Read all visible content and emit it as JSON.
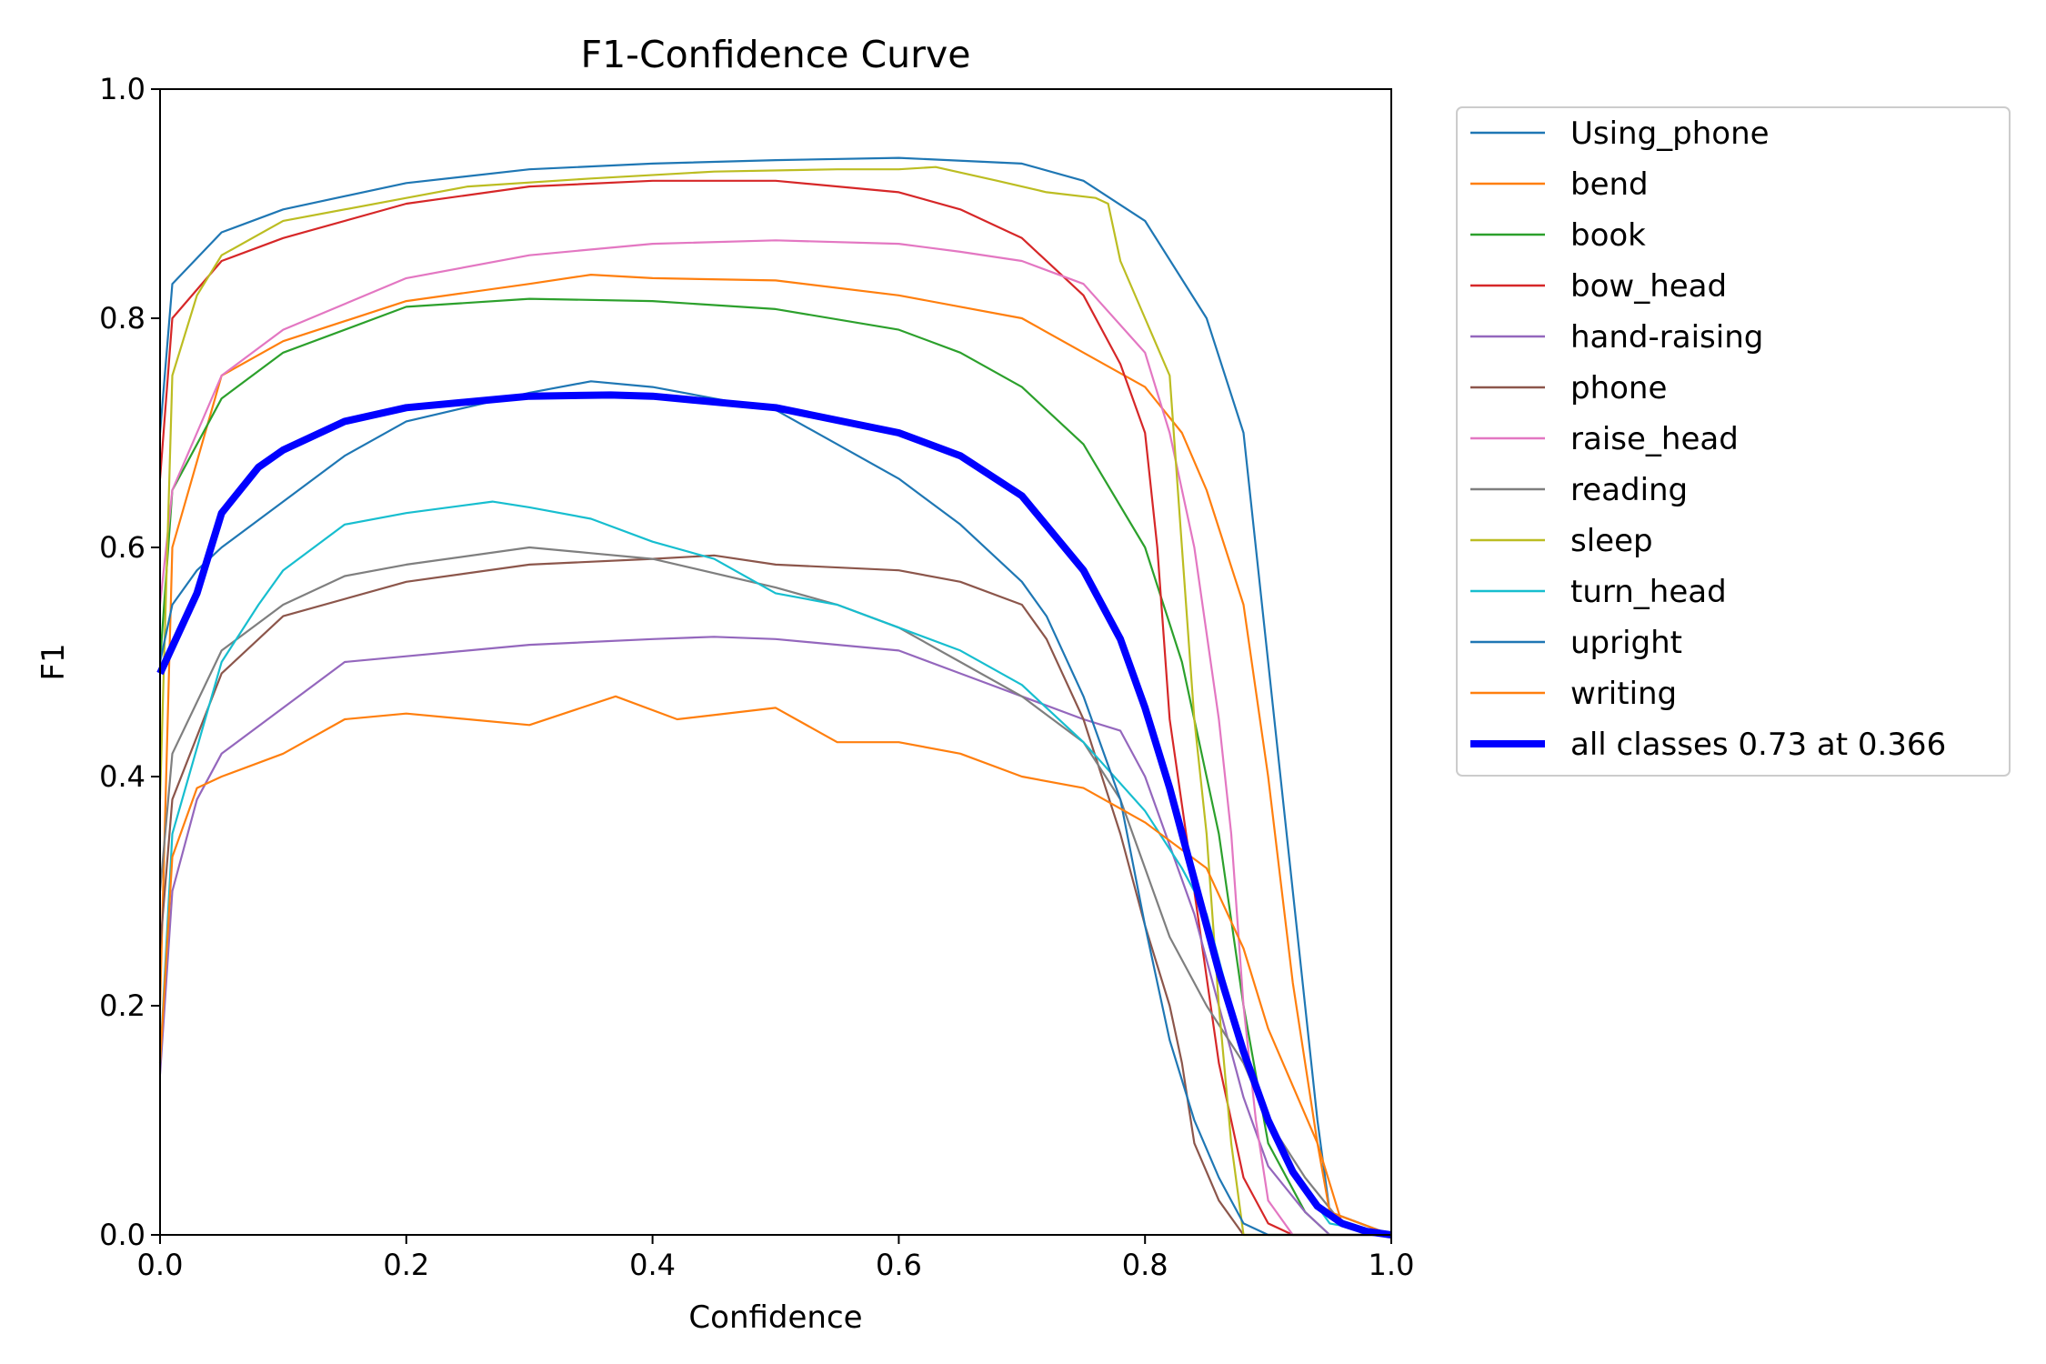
{
  "chart_data": {
    "type": "line",
    "title": "F1-Confidence Curve",
    "xlabel": "Confidence",
    "ylabel": "F1",
    "xlim": [
      0,
      1
    ],
    "ylim": [
      0,
      1
    ],
    "xticks": [
      "0.0",
      "0.2",
      "0.4",
      "0.6",
      "0.8",
      "1.0"
    ],
    "yticks": [
      "0.0",
      "0.2",
      "0.4",
      "0.6",
      "0.8",
      "1.0"
    ],
    "grid": false,
    "legend_placement": "outside-right-top",
    "series": [
      {
        "name": "Using_phone",
        "color": "#1f77b4",
        "points": [
          [
            0,
            0.7
          ],
          [
            0.01,
            0.83
          ],
          [
            0.05,
            0.875
          ],
          [
            0.1,
            0.895
          ],
          [
            0.2,
            0.918
          ],
          [
            0.3,
            0.93
          ],
          [
            0.4,
            0.935
          ],
          [
            0.5,
            0.938
          ],
          [
            0.6,
            0.94
          ],
          [
            0.7,
            0.935
          ],
          [
            0.75,
            0.92
          ],
          [
            0.8,
            0.885
          ],
          [
            0.85,
            0.8
          ],
          [
            0.88,
            0.7
          ],
          [
            0.9,
            0.5
          ],
          [
            0.92,
            0.3
          ],
          [
            0.94,
            0.1
          ],
          [
            0.95,
            0.02
          ],
          [
            1,
            0
          ]
        ]
      },
      {
        "name": "bend",
        "color": "#ff7f0e",
        "points": [
          [
            0,
            0.2
          ],
          [
            0.01,
            0.6
          ],
          [
            0.05,
            0.75
          ],
          [
            0.1,
            0.78
          ],
          [
            0.2,
            0.815
          ],
          [
            0.3,
            0.83
          ],
          [
            0.35,
            0.838
          ],
          [
            0.4,
            0.835
          ],
          [
            0.5,
            0.833
          ],
          [
            0.6,
            0.82
          ],
          [
            0.7,
            0.8
          ],
          [
            0.75,
            0.77
          ],
          [
            0.8,
            0.74
          ],
          [
            0.83,
            0.7
          ],
          [
            0.85,
            0.65
          ],
          [
            0.88,
            0.55
          ],
          [
            0.9,
            0.4
          ],
          [
            0.92,
            0.22
          ],
          [
            0.94,
            0.08
          ],
          [
            0.96,
            0.01
          ],
          [
            1,
            0
          ]
        ]
      },
      {
        "name": "book",
        "color": "#2ca02c",
        "points": [
          [
            0,
            0.5
          ],
          [
            0.01,
            0.65
          ],
          [
            0.05,
            0.73
          ],
          [
            0.1,
            0.77
          ],
          [
            0.2,
            0.81
          ],
          [
            0.3,
            0.817
          ],
          [
            0.4,
            0.815
          ],
          [
            0.5,
            0.808
          ],
          [
            0.6,
            0.79
          ],
          [
            0.65,
            0.77
          ],
          [
            0.7,
            0.74
          ],
          [
            0.75,
            0.69
          ],
          [
            0.8,
            0.6
          ],
          [
            0.83,
            0.5
          ],
          [
            0.86,
            0.35
          ],
          [
            0.88,
            0.2
          ],
          [
            0.9,
            0.08
          ],
          [
            0.93,
            0.02
          ],
          [
            0.95,
            0
          ],
          [
            1,
            0
          ]
        ]
      },
      {
        "name": "bow_head",
        "color": "#d62728",
        "points": [
          [
            0,
            0.66
          ],
          [
            0.01,
            0.8
          ],
          [
            0.05,
            0.85
          ],
          [
            0.1,
            0.87
          ],
          [
            0.2,
            0.9
          ],
          [
            0.3,
            0.915
          ],
          [
            0.4,
            0.92
          ],
          [
            0.5,
            0.92
          ],
          [
            0.6,
            0.91
          ],
          [
            0.65,
            0.895
          ],
          [
            0.7,
            0.87
          ],
          [
            0.75,
            0.82
          ],
          [
            0.78,
            0.76
          ],
          [
            0.8,
            0.7
          ],
          [
            0.81,
            0.6
          ],
          [
            0.82,
            0.45
          ],
          [
            0.84,
            0.3
          ],
          [
            0.86,
            0.15
          ],
          [
            0.88,
            0.05
          ],
          [
            0.9,
            0.01
          ],
          [
            0.92,
            0
          ],
          [
            1,
            0
          ]
        ]
      },
      {
        "name": "hand-raising",
        "color": "#9467bd",
        "points": [
          [
            0,
            0.14
          ],
          [
            0.01,
            0.3
          ],
          [
            0.03,
            0.38
          ],
          [
            0.05,
            0.42
          ],
          [
            0.1,
            0.46
          ],
          [
            0.15,
            0.5
          ],
          [
            0.2,
            0.505
          ],
          [
            0.3,
            0.515
          ],
          [
            0.4,
            0.52
          ],
          [
            0.45,
            0.522
          ],
          [
            0.5,
            0.52
          ],
          [
            0.6,
            0.51
          ],
          [
            0.65,
            0.49
          ],
          [
            0.7,
            0.47
          ],
          [
            0.75,
            0.45
          ],
          [
            0.78,
            0.44
          ],
          [
            0.8,
            0.4
          ],
          [
            0.82,
            0.34
          ],
          [
            0.84,
            0.28
          ],
          [
            0.86,
            0.2
          ],
          [
            0.88,
            0.12
          ],
          [
            0.9,
            0.06
          ],
          [
            0.93,
            0.02
          ],
          [
            0.95,
            0
          ],
          [
            1,
            0
          ]
        ]
      },
      {
        "name": "phone",
        "color": "#8c564b",
        "points": [
          [
            0,
            0.25
          ],
          [
            0.01,
            0.38
          ],
          [
            0.05,
            0.49
          ],
          [
            0.1,
            0.54
          ],
          [
            0.2,
            0.57
          ],
          [
            0.3,
            0.585
          ],
          [
            0.4,
            0.59
          ],
          [
            0.45,
            0.593
          ],
          [
            0.5,
            0.585
          ],
          [
            0.6,
            0.58
          ],
          [
            0.65,
            0.57
          ],
          [
            0.7,
            0.55
          ],
          [
            0.72,
            0.52
          ],
          [
            0.75,
            0.45
          ],
          [
            0.78,
            0.35
          ],
          [
            0.8,
            0.27
          ],
          [
            0.82,
            0.2
          ],
          [
            0.83,
            0.15
          ],
          [
            0.84,
            0.08
          ],
          [
            0.86,
            0.03
          ],
          [
            0.88,
            0
          ],
          [
            1,
            0
          ]
        ]
      },
      {
        "name": "raise_head",
        "color": "#e377c2",
        "points": [
          [
            0,
            0.55
          ],
          [
            0.01,
            0.65
          ],
          [
            0.05,
            0.75
          ],
          [
            0.1,
            0.79
          ],
          [
            0.2,
            0.835
          ],
          [
            0.3,
            0.855
          ],
          [
            0.4,
            0.865
          ],
          [
            0.5,
            0.868
          ],
          [
            0.6,
            0.865
          ],
          [
            0.65,
            0.858
          ],
          [
            0.7,
            0.85
          ],
          [
            0.75,
            0.83
          ],
          [
            0.8,
            0.77
          ],
          [
            0.82,
            0.7
          ],
          [
            0.84,
            0.6
          ],
          [
            0.86,
            0.45
          ],
          [
            0.87,
            0.35
          ],
          [
            0.88,
            0.2
          ],
          [
            0.89,
            0.1
          ],
          [
            0.9,
            0.03
          ],
          [
            0.92,
            0
          ],
          [
            1,
            0
          ]
        ]
      },
      {
        "name": "reading",
        "color": "#7f7f7f",
        "points": [
          [
            0,
            0.3
          ],
          [
            0.01,
            0.42
          ],
          [
            0.05,
            0.51
          ],
          [
            0.1,
            0.55
          ],
          [
            0.15,
            0.575
          ],
          [
            0.2,
            0.585
          ],
          [
            0.3,
            0.6
          ],
          [
            0.35,
            0.595
          ],
          [
            0.4,
            0.59
          ],
          [
            0.5,
            0.565
          ],
          [
            0.55,
            0.55
          ],
          [
            0.6,
            0.53
          ],
          [
            0.65,
            0.5
          ],
          [
            0.7,
            0.47
          ],
          [
            0.75,
            0.43
          ],
          [
            0.78,
            0.38
          ],
          [
            0.8,
            0.32
          ],
          [
            0.82,
            0.26
          ],
          [
            0.85,
            0.2
          ],
          [
            0.88,
            0.15
          ],
          [
            0.9,
            0.1
          ],
          [
            0.93,
            0.05
          ],
          [
            0.96,
            0.01
          ],
          [
            1,
            0
          ]
        ]
      },
      {
        "name": "sleep",
        "color": "#bcbd22",
        "points": [
          [
            0,
            0.38
          ],
          [
            0.01,
            0.75
          ],
          [
            0.03,
            0.82
          ],
          [
            0.05,
            0.855
          ],
          [
            0.1,
            0.885
          ],
          [
            0.2,
            0.905
          ],
          [
            0.25,
            0.915
          ],
          [
            0.35,
            0.922
          ],
          [
            0.45,
            0.928
          ],
          [
            0.55,
            0.93
          ],
          [
            0.6,
            0.93
          ],
          [
            0.63,
            0.932
          ],
          [
            0.68,
            0.92
          ],
          [
            0.72,
            0.91
          ],
          [
            0.76,
            0.905
          ],
          [
            0.77,
            0.9
          ],
          [
            0.78,
            0.85
          ],
          [
            0.8,
            0.8
          ],
          [
            0.82,
            0.75
          ],
          [
            0.83,
            0.6
          ],
          [
            0.84,
            0.45
          ],
          [
            0.85,
            0.35
          ],
          [
            0.86,
            0.2
          ],
          [
            0.87,
            0.08
          ],
          [
            0.88,
            0
          ],
          [
            1,
            0
          ]
        ]
      },
      {
        "name": "turn_head",
        "color": "#17becf",
        "points": [
          [
            0,
            0.15
          ],
          [
            0.01,
            0.35
          ],
          [
            0.05,
            0.5
          ],
          [
            0.08,
            0.55
          ],
          [
            0.1,
            0.58
          ],
          [
            0.15,
            0.62
          ],
          [
            0.2,
            0.63
          ],
          [
            0.27,
            0.64
          ],
          [
            0.3,
            0.635
          ],
          [
            0.35,
            0.625
          ],
          [
            0.4,
            0.605
          ],
          [
            0.45,
            0.59
          ],
          [
            0.5,
            0.56
          ],
          [
            0.55,
            0.55
          ],
          [
            0.6,
            0.53
          ],
          [
            0.65,
            0.51
          ],
          [
            0.7,
            0.48
          ],
          [
            0.75,
            0.43
          ],
          [
            0.8,
            0.37
          ],
          [
            0.83,
            0.32
          ],
          [
            0.85,
            0.28
          ],
          [
            0.87,
            0.2
          ],
          [
            0.9,
            0.1
          ],
          [
            0.93,
            0.04
          ],
          [
            0.95,
            0.01
          ],
          [
            1,
            0
          ]
        ]
      },
      {
        "name": "upright",
        "color": "#1f77b4",
        "points": [
          [
            0,
            0.5
          ],
          [
            0.01,
            0.55
          ],
          [
            0.03,
            0.58
          ],
          [
            0.05,
            0.6
          ],
          [
            0.1,
            0.64
          ],
          [
            0.15,
            0.68
          ],
          [
            0.2,
            0.71
          ],
          [
            0.3,
            0.735
          ],
          [
            0.35,
            0.745
          ],
          [
            0.4,
            0.74
          ],
          [
            0.45,
            0.73
          ],
          [
            0.5,
            0.72
          ],
          [
            0.55,
            0.69
          ],
          [
            0.6,
            0.66
          ],
          [
            0.65,
            0.62
          ],
          [
            0.7,
            0.57
          ],
          [
            0.72,
            0.54
          ],
          [
            0.75,
            0.47
          ],
          [
            0.78,
            0.38
          ],
          [
            0.8,
            0.27
          ],
          [
            0.82,
            0.17
          ],
          [
            0.84,
            0.1
          ],
          [
            0.86,
            0.05
          ],
          [
            0.88,
            0.01
          ],
          [
            0.9,
            0
          ],
          [
            1,
            0
          ]
        ]
      },
      {
        "name": "writing",
        "color": "#ff7f0e",
        "points": [
          [
            0,
            0.15
          ],
          [
            0.01,
            0.33
          ],
          [
            0.03,
            0.39
          ],
          [
            0.05,
            0.4
          ],
          [
            0.1,
            0.42
          ],
          [
            0.15,
            0.45
          ],
          [
            0.2,
            0.455
          ],
          [
            0.3,
            0.445
          ],
          [
            0.37,
            0.47
          ],
          [
            0.42,
            0.45
          ],
          [
            0.5,
            0.46
          ],
          [
            0.55,
            0.43
          ],
          [
            0.6,
            0.43
          ],
          [
            0.65,
            0.42
          ],
          [
            0.7,
            0.4
          ],
          [
            0.75,
            0.39
          ],
          [
            0.8,
            0.36
          ],
          [
            0.85,
            0.32
          ],
          [
            0.88,
            0.25
          ],
          [
            0.9,
            0.18
          ],
          [
            0.92,
            0.13
          ],
          [
            0.94,
            0.08
          ],
          [
            0.95,
            0.02
          ],
          [
            1,
            0
          ]
        ]
      },
      {
        "name": "all classes 0.73 at 0.366",
        "color": "#0000ff",
        "thick": true,
        "points": [
          [
            0,
            0.49
          ],
          [
            0.03,
            0.56
          ],
          [
            0.05,
            0.63
          ],
          [
            0.08,
            0.67
          ],
          [
            0.1,
            0.685
          ],
          [
            0.15,
            0.71
          ],
          [
            0.2,
            0.722
          ],
          [
            0.3,
            0.732
          ],
          [
            0.366,
            0.733
          ],
          [
            0.4,
            0.732
          ],
          [
            0.5,
            0.722
          ],
          [
            0.6,
            0.7
          ],
          [
            0.65,
            0.68
          ],
          [
            0.7,
            0.645
          ],
          [
            0.75,
            0.58
          ],
          [
            0.78,
            0.52
          ],
          [
            0.8,
            0.46
          ],
          [
            0.82,
            0.39
          ],
          [
            0.84,
            0.31
          ],
          [
            0.86,
            0.23
          ],
          [
            0.88,
            0.16
          ],
          [
            0.9,
            0.1
          ],
          [
            0.92,
            0.055
          ],
          [
            0.94,
            0.025
          ],
          [
            0.96,
            0.01
          ],
          [
            0.98,
            0.003
          ],
          [
            1,
            0
          ]
        ]
      }
    ]
  }
}
